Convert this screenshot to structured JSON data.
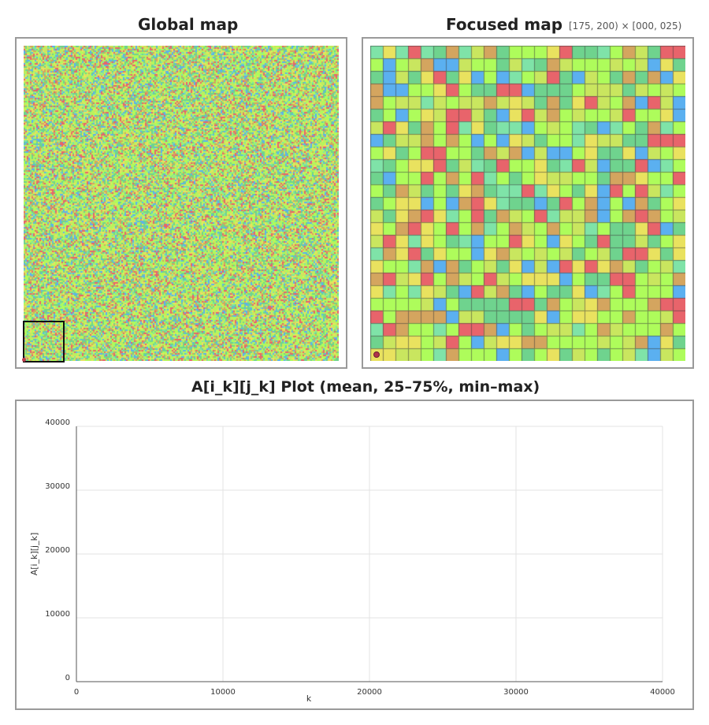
{
  "global_map": {
    "title": "Global map",
    "cells": 200
  },
  "focused_map": {
    "title": "Focused map",
    "range_label": "[175, 200) × [000, 025)",
    "cells": 25
  },
  "plot": {
    "title": "A[i_k][j_k] Plot (mean, 25–75%, min–max)",
    "xlabel": "k",
    "ylabel": "A[i_k][j_k]"
  },
  "colors": {
    "palette": [
      "#e9e25f",
      "#aefc5b",
      "#6fd38e",
      "#5bb0f0",
      "#e8646b",
      "#d4a55f",
      "#c9e65f",
      "#7fe3a8"
    ],
    "frame": "#9a9a9a",
    "focus_rect": "#111111",
    "marker": "#b0344a"
  },
  "chart_data": {
    "type": "line",
    "title": "A[i_k][j_k] Plot (mean, 25–75%, min–max)",
    "xlabel": "k",
    "ylabel": "A[i_k][j_k]",
    "xlim": [
      0,
      40000
    ],
    "ylim": [
      0,
      40000
    ],
    "x_ticks": [
      "0",
      "10000",
      "20000",
      "30000",
      "40000"
    ],
    "y_ticks": [
      "0",
      "10000",
      "20000",
      "30000",
      "40000"
    ],
    "grid": true,
    "series": []
  }
}
